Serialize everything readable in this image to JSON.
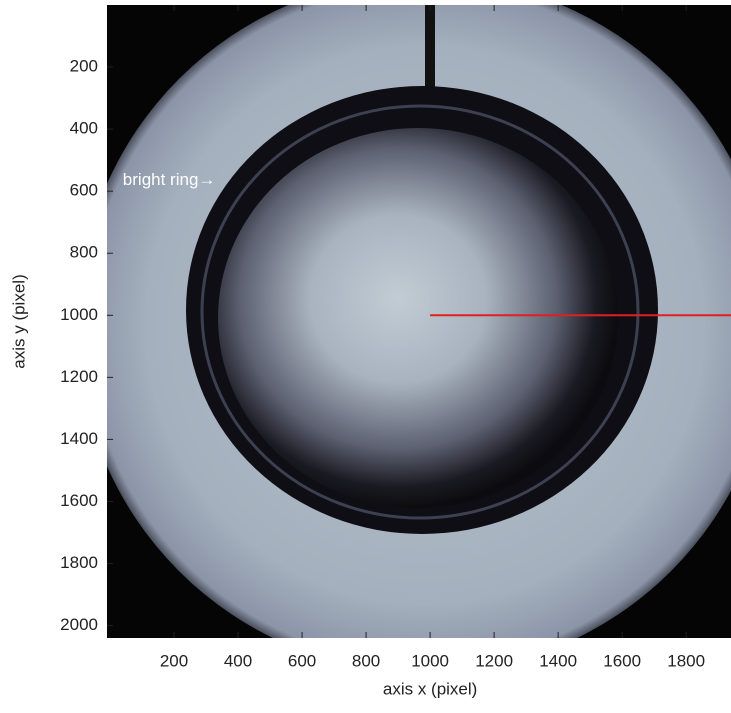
{
  "chart_data": {
    "type": "image",
    "xlabel": "axis x (pixel)",
    "ylabel": "axis y (pixel)",
    "xlim": [
      0,
      1940
    ],
    "ylim": [
      0,
      2040
    ],
    "y_reversed": true,
    "xticks": [
      200,
      400,
      600,
      800,
      1000,
      1200,
      1400,
      1600,
      1800
    ],
    "yticks": [
      200,
      400,
      600,
      800,
      1000,
      1200,
      1400,
      1600,
      1800,
      2000
    ],
    "grid": false,
    "annotation": {
      "text": "bright ring→",
      "x": 40,
      "y": 565
    },
    "line": {
      "color": "#e02020",
      "x": [
        1000,
        1940
      ],
      "y": [
        1000,
        1000
      ]
    }
  }
}
